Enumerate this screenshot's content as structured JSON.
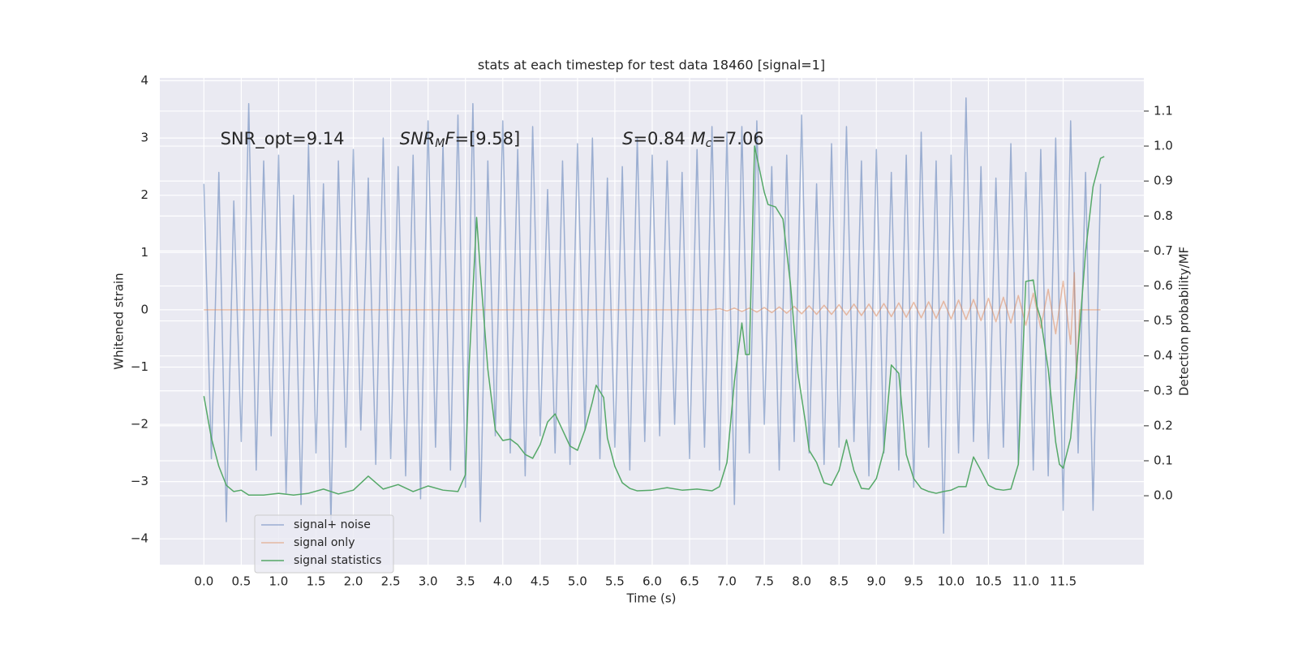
{
  "chart_data": {
    "type": "line",
    "title": "stats at each timestep for test data 18460 [signal=1]",
    "xlabel": "Time (s)",
    "ylabel": "Whitened strain",
    "y2label": "Detection probability/MF",
    "grid": true,
    "legend": "lower left",
    "xlim": [
      -0.59,
      12.58
    ],
    "ylim": [
      -4.45,
      4.05
    ],
    "y2lim": [
      -0.197,
      1.195
    ],
    "xticks": [
      {
        "value": 0,
        "label": "0.0"
      },
      0.5,
      {
        "value": 1,
        "label": "1.0"
      },
      1.5,
      {
        "value": 2,
        "label": "2.0"
      },
      2.5,
      {
        "value": 3,
        "label": "3.0"
      },
      3.5,
      {
        "value": 4,
        "label": "4.0"
      },
      4.5,
      {
        "value": 5,
        "label": "5.0"
      },
      5.5,
      {
        "value": 6,
        "label": "6.0"
      },
      6.5,
      {
        "value": 7,
        "label": "7.0"
      },
      7.5,
      {
        "value": 8,
        "label": "8.0"
      },
      8.5,
      {
        "value": 9,
        "label": "9.0"
      },
      9.5,
      {
        "value": 10,
        "label": "10.0"
      },
      10.5,
      {
        "value": 11,
        "label": "11.0"
      },
      11.5
    ],
    "yticks": [
      {
        "value": -4,
        "label": "−4"
      },
      {
        "value": -3,
        "label": "−3"
      },
      {
        "value": -2,
        "label": "−2"
      },
      {
        "value": -1,
        "label": "−1"
      },
      0,
      1,
      2,
      3,
      4
    ],
    "y2ticks": [
      {
        "value": 0,
        "label": "0.0"
      },
      0.1,
      0.2,
      0.3,
      0.4,
      0.5,
      0.6,
      0.7,
      0.8,
      0.9,
      {
        "value": 1,
        "label": "1.0"
      },
      1.1
    ],
    "annotations": [
      {
        "x": 0.22,
        "y": 2.97,
        "parts": [
          {
            "text": "SNR_opt=9.14"
          }
        ]
      },
      {
        "x": 2.62,
        "y": 2.97,
        "parts": [
          {
            "text": "SNR",
            "style": "italic"
          },
          {
            "text": "M",
            "style": "sub"
          },
          {
            "text": "F",
            "style": "italic"
          },
          {
            "text": "=[9.58]"
          }
        ]
      },
      {
        "x": 5.6,
        "y": 2.97,
        "parts": [
          {
            "text": "S",
            "style": "italic"
          },
          {
            "text": "=0.84  "
          },
          {
            "text": "M",
            "style": "italic"
          },
          {
            "text": "c",
            "style": "sub"
          },
          {
            "text": "=7.06"
          }
        ]
      }
    ],
    "series": [
      {
        "name": "signal+ noise",
        "color": "#4c72b0",
        "alpha": 0.5,
        "x": [
          0,
          0.1,
          0.2,
          0.3,
          0.4,
          0.5,
          0.6,
          0.7,
          0.8,
          0.9,
          1,
          1.1,
          1.2,
          1.3,
          1.4,
          1.5,
          1.6,
          1.7,
          1.8,
          1.9,
          2,
          2.1,
          2.2,
          2.3,
          2.4,
          2.5,
          2.6,
          2.7,
          2.8,
          2.9,
          3,
          3.1,
          3.2,
          3.3,
          3.4,
          3.5,
          3.6,
          3.7,
          3.8,
          3.9,
          4,
          4.1,
          4.2,
          4.3,
          4.4,
          4.5,
          4.6,
          4.7,
          4.8,
          4.9,
          5,
          5.1,
          5.2,
          5.3,
          5.4,
          5.5,
          5.6,
          5.7,
          5.8,
          5.9,
          6,
          6.1,
          6.2,
          6.3,
          6.4,
          6.5,
          6.6,
          6.7,
          6.8,
          6.9,
          7,
          7.1,
          7.2,
          7.3,
          7.4,
          7.5,
          7.6,
          7.7,
          7.8,
          7.9,
          8,
          8.1,
          8.2,
          8.3,
          8.4,
          8.5,
          8.6,
          8.7,
          8.8,
          8.9,
          9,
          9.1,
          9.2,
          9.3,
          9.4,
          9.5,
          9.6,
          9.7,
          9.8,
          9.9,
          10,
          10.1,
          10.2,
          10.3,
          10.4,
          10.5,
          10.6,
          10.7,
          10.8,
          10.9,
          11,
          11.1,
          11.2,
          11.3,
          11.4,
          11.5,
          11.6,
          11.7,
          11.8,
          11.9,
          12
        ],
        "values": [
          2.2,
          -2.6,
          2.4,
          -3.7,
          1.9,
          -2.3,
          3.6,
          -2.8,
          2.6,
          -2.2,
          2.7,
          -3.2,
          2.0,
          -3.4,
          2.9,
          -2.5,
          2.2,
          -3.7,
          2.6,
          -2.4,
          2.8,
          -2.1,
          2.3,
          -2.7,
          3.0,
          -2.6,
          2.5,
          -2.9,
          2.7,
          -3.3,
          3.3,
          -2.4,
          2.9,
          -2.8,
          3.4,
          -3.1,
          3.6,
          -3.7,
          2.6,
          -2.2,
          3.3,
          -2.5,
          2.8,
          -2.9,
          3.2,
          -2.2,
          2.1,
          -2.5,
          2.6,
          -2.7,
          2.9,
          -2.1,
          3.0,
          -2.6,
          2.3,
          -2.4,
          2.5,
          -2.8,
          3.0,
          -2.3,
          2.7,
          -2.2,
          2.6,
          -2.0,
          2.4,
          -2.6,
          2.8,
          -2.4,
          3.2,
          -2.8,
          3.1,
          -3.4,
          3.2,
          -2.5,
          3.3,
          -2.0,
          2.5,
          -2.8,
          2.7,
          -2.3,
          3.4,
          -2.5,
          2.2,
          -2.7,
          2.9,
          -2.4,
          3.2,
          -2.3,
          2.6,
          -2.9,
          2.8,
          -2.5,
          2.4,
          -2.8,
          2.7,
          -3.1,
          3.1,
          -2.4,
          2.6,
          -3.9,
          2.7,
          -2.5,
          3.7,
          -2.3,
          2.5,
          -2.6,
          2.3,
          -2.4,
          2.9,
          -2.7,
          2.4,
          -2.8,
          2.8,
          -2.9,
          3.0,
          -3.5,
          3.3,
          -2.5,
          2.4,
          -3.5,
          2.2
        ]
      },
      {
        "name": "signal only",
        "color": "#dd8452",
        "alpha": 0.5,
        "x": [
          0,
          6.8,
          6.9,
          7,
          7.1,
          7.2,
          7.3,
          7.4,
          7.5,
          7.6,
          7.7,
          7.8,
          7.9,
          8,
          8.1,
          8.2,
          8.3,
          8.4,
          8.5,
          8.6,
          8.7,
          8.8,
          8.9,
          9,
          9.1,
          9.2,
          9.3,
          9.4,
          9.5,
          9.6,
          9.7,
          9.8,
          9.9,
          10,
          10.1,
          10.2,
          10.3,
          10.4,
          10.5,
          10.6,
          10.7,
          10.8,
          10.9,
          11,
          11.1,
          11.2,
          11.3,
          11.4,
          11.5,
          11.6,
          11.65,
          11.68,
          11.72,
          12
        ],
        "values": [
          0,
          0,
          0.02,
          -0.02,
          0.03,
          -0.03,
          0.03,
          -0.04,
          0.04,
          -0.05,
          0.05,
          -0.06,
          0.06,
          -0.07,
          0.07,
          -0.08,
          0.08,
          -0.08,
          0.09,
          -0.09,
          0.1,
          -0.1,
          0.1,
          -0.11,
          0.11,
          -0.12,
          0.12,
          -0.13,
          0.13,
          -0.14,
          0.14,
          -0.15,
          0.15,
          -0.16,
          0.17,
          -0.17,
          0.18,
          -0.19,
          0.2,
          -0.21,
          0.22,
          -0.23,
          0.25,
          -0.27,
          0.29,
          -0.32,
          0.36,
          -0.42,
          0.5,
          -0.6,
          0.65,
          -1.2,
          0,
          0
        ]
      },
      {
        "name": "signal statistics",
        "color": "#55a868",
        "alpha": 1,
        "axis": "y2",
        "x": [
          0,
          0.1,
          0.2,
          0.3,
          0.4,
          0.5,
          0.6,
          0.8,
          1,
          1.2,
          1.4,
          1.6,
          1.8,
          2,
          2.2,
          2.4,
          2.6,
          2.8,
          3,
          3.2,
          3.4,
          3.5,
          3.55,
          3.65,
          3.7,
          3.8,
          3.9,
          4,
          4.1,
          4.2,
          4.3,
          4.4,
          4.5,
          4.6,
          4.7,
          4.8,
          4.9,
          5,
          5.1,
          5.2,
          5.25,
          5.35,
          5.4,
          5.5,
          5.6,
          5.7,
          5.8,
          6,
          6.2,
          6.4,
          6.6,
          6.8,
          6.9,
          7,
          7.1,
          7.2,
          7.25,
          7.3,
          7.37,
          7.45,
          7.5,
          7.55,
          7.65,
          7.75,
          7.85,
          7.95,
          8.05,
          8.1,
          8.2,
          8.3,
          8.4,
          8.5,
          8.6,
          8.7,
          8.8,
          8.9,
          9,
          9.1,
          9.2,
          9.3,
          9.4,
          9.5,
          9.6,
          9.7,
          9.8,
          9.9,
          10,
          10.1,
          10.2,
          10.3,
          10.4,
          10.5,
          10.6,
          10.7,
          10.8,
          10.9,
          11,
          11.1,
          11.15,
          11.2,
          11.3,
          11.4,
          11.45,
          11.5,
          11.6,
          11.7,
          11.8,
          11.9,
          12,
          12.05
        ],
        "values": [
          0.285,
          0.165,
          0.084,
          0.03,
          0.012,
          0.016,
          0.002,
          0.002,
          0.007,
          0.002,
          0.007,
          0.019,
          0.005,
          0.016,
          0.056,
          0.019,
          0.032,
          0.012,
          0.028,
          0.016,
          0.012,
          0.06,
          0.374,
          0.796,
          0.64,
          0.362,
          0.188,
          0.158,
          0.162,
          0.146,
          0.118,
          0.107,
          0.146,
          0.211,
          0.234,
          0.188,
          0.142,
          0.13,
          0.188,
          0.269,
          0.316,
          0.281,
          0.165,
          0.084,
          0.037,
          0.021,
          0.014,
          0.016,
          0.023,
          0.016,
          0.019,
          0.014,
          0.026,
          0.095,
          0.327,
          0.494,
          0.404,
          0.404,
          1.0,
          0.919,
          0.868,
          0.833,
          0.826,
          0.791,
          0.606,
          0.35,
          0.211,
          0.13,
          0.095,
          0.037,
          0.03,
          0.072,
          0.16,
          0.072,
          0.021,
          0.019,
          0.049,
          0.13,
          0.374,
          0.35,
          0.118,
          0.049,
          0.021,
          0.012,
          0.007,
          0.012,
          0.016,
          0.026,
          0.026,
          0.111,
          0.072,
          0.03,
          0.019,
          0.016,
          0.019,
          0.09,
          0.613,
          0.617,
          0.541,
          0.506,
          0.362,
          0.153,
          0.09,
          0.079,
          0.165,
          0.42,
          0.698,
          0.884,
          0.965,
          0.97
        ]
      }
    ]
  }
}
